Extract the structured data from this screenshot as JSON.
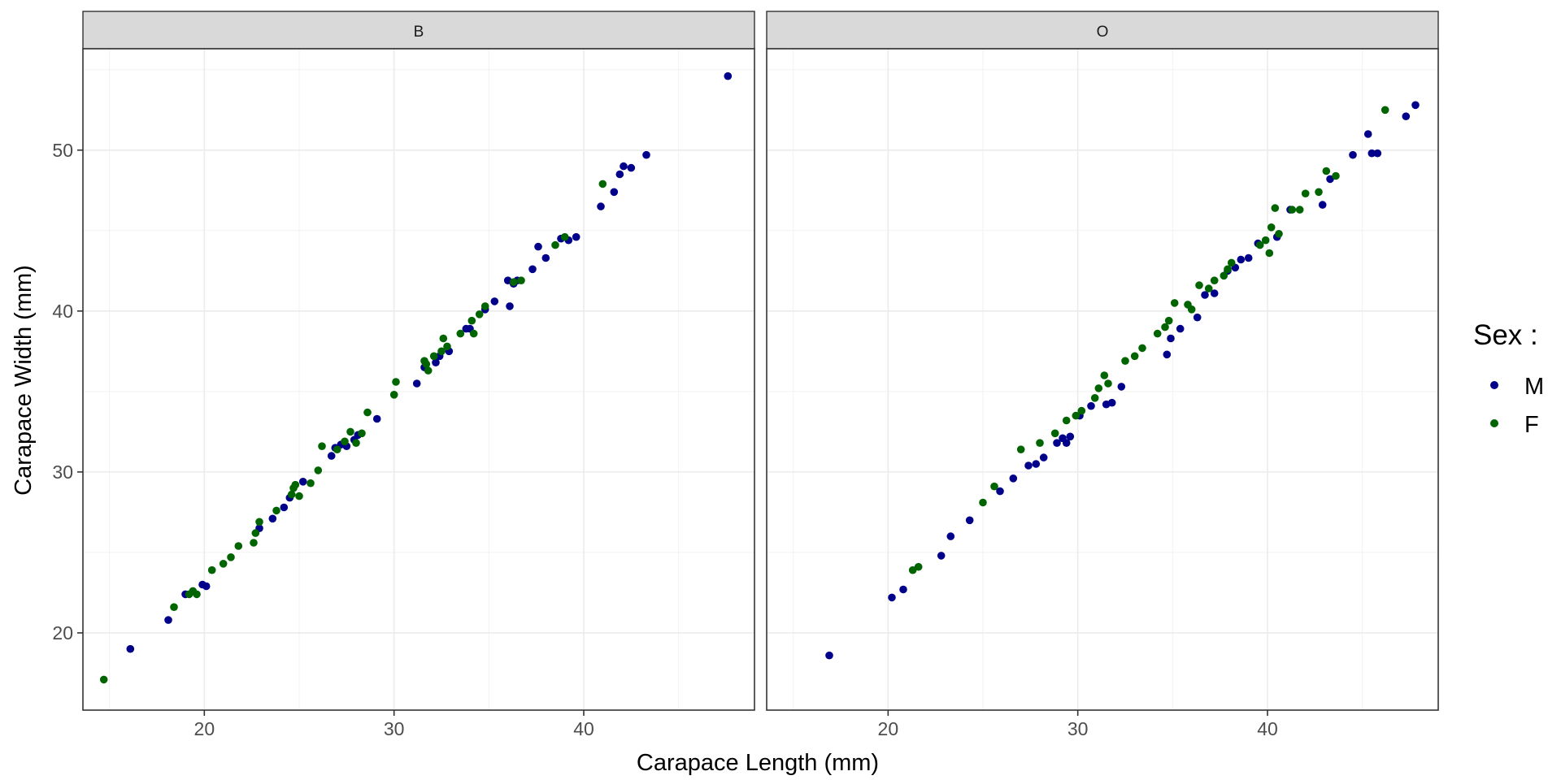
{
  "chart_data": {
    "type": "scatter",
    "xlabel": "Carapace Length (mm)",
    "ylabel": "Carapace Width (mm)",
    "xlim": [
      13.6,
      49.0
    ],
    "ylim": [
      15.2,
      56.3
    ],
    "x_ticks": [
      20,
      30,
      40
    ],
    "y_ticks": [
      20,
      30,
      40,
      50
    ],
    "grid": true,
    "legend": {
      "title": "Sex :",
      "position": "right",
      "entries": [
        {
          "label": "M",
          "color": "#00008B"
        },
        {
          "label": "F",
          "color": "#006400"
        }
      ]
    },
    "panels": [
      {
        "title": "B",
        "series": [
          {
            "name": "M",
            "color": "#00008B",
            "points": [
              [
                16.1,
                19.0
              ],
              [
                18.1,
                20.8
              ],
              [
                19.0,
                22.4
              ],
              [
                19.9,
                23.0
              ],
              [
                20.1,
                22.9
              ],
              [
                22.9,
                26.5
              ],
              [
                23.6,
                27.1
              ],
              [
                24.2,
                27.8
              ],
              [
                24.5,
                28.4
              ],
              [
                25.2,
                29.4
              ],
              [
                26.7,
                31.0
              ],
              [
                26.9,
                31.5
              ],
              [
                27.2,
                31.7
              ],
              [
                27.5,
                31.6
              ],
              [
                27.9,
                32.0
              ],
              [
                28.1,
                32.3
              ],
              [
                29.1,
                33.3
              ],
              [
                31.2,
                35.5
              ],
              [
                31.6,
                36.5
              ],
              [
                32.2,
                36.8
              ],
              [
                32.4,
                37.2
              ],
              [
                32.9,
                37.5
              ],
              [
                33.8,
                38.9
              ],
              [
                34.0,
                38.9
              ],
              [
                34.8,
                40.1
              ],
              [
                35.3,
                40.6
              ],
              [
                36.0,
                41.9
              ],
              [
                36.1,
                40.3
              ],
              [
                36.3,
                41.7
              ],
              [
                36.5,
                41.9
              ],
              [
                37.3,
                42.6
              ],
              [
                37.6,
                44.0
              ],
              [
                38.0,
                43.3
              ],
              [
                38.8,
                44.5
              ],
              [
                39.2,
                44.4
              ],
              [
                39.6,
                44.6
              ],
              [
                40.9,
                46.5
              ],
              [
                41.6,
                47.4
              ],
              [
                41.9,
                48.5
              ],
              [
                42.1,
                49.0
              ],
              [
                42.5,
                48.9
              ],
              [
                43.3,
                49.7
              ],
              [
                47.6,
                54.6
              ]
            ]
          },
          {
            "name": "F",
            "color": "#006400",
            "points": [
              [
                14.7,
                17.1
              ],
              [
                18.4,
                21.6
              ],
              [
                19.2,
                22.4
              ],
              [
                19.4,
                22.6
              ],
              [
                19.6,
                22.4
              ],
              [
                20.4,
                23.9
              ],
              [
                21.0,
                24.3
              ],
              [
                21.4,
                24.7
              ],
              [
                21.8,
                25.4
              ],
              [
                22.6,
                25.6
              ],
              [
                22.7,
                26.2
              ],
              [
                22.9,
                26.9
              ],
              [
                23.8,
                27.6
              ],
              [
                24.6,
                28.6
              ],
              [
                24.7,
                29.0
              ],
              [
                24.8,
                29.2
              ],
              [
                25.0,
                28.5
              ],
              [
                25.6,
                29.3
              ],
              [
                26.0,
                30.1
              ],
              [
                26.2,
                31.6
              ],
              [
                27.0,
                31.4
              ],
              [
                27.4,
                31.9
              ],
              [
                27.7,
                32.5
              ],
              [
                28.0,
                31.8
              ],
              [
                28.3,
                32.4
              ],
              [
                28.6,
                33.7
              ],
              [
                30.0,
                34.8
              ],
              [
                30.1,
                35.6
              ],
              [
                31.6,
                36.9
              ],
              [
                31.7,
                36.7
              ],
              [
                31.8,
                36.3
              ],
              [
                32.1,
                37.2
              ],
              [
                32.5,
                37.5
              ],
              [
                32.6,
                38.3
              ],
              [
                32.8,
                37.8
              ],
              [
                33.5,
                38.6
              ],
              [
                34.1,
                39.4
              ],
              [
                34.2,
                38.6
              ],
              [
                34.5,
                39.8
              ],
              [
                34.8,
                40.3
              ],
              [
                36.3,
                41.8
              ],
              [
                36.7,
                41.9
              ],
              [
                38.5,
                44.1
              ],
              [
                39.0,
                44.6
              ],
              [
                41.0,
                47.9
              ]
            ]
          }
        ]
      },
      {
        "title": "O",
        "series": [
          {
            "name": "M",
            "color": "#00008B",
            "points": [
              [
                16.9,
                18.6
              ],
              [
                20.2,
                22.2
              ],
              [
                20.8,
                22.7
              ],
              [
                22.8,
                24.8
              ],
              [
                23.3,
                26.0
              ],
              [
                24.3,
                27.0
              ],
              [
                25.9,
                28.8
              ],
              [
                26.6,
                29.6
              ],
              [
                27.4,
                30.4
              ],
              [
                27.8,
                30.5
              ],
              [
                28.2,
                30.9
              ],
              [
                28.9,
                31.8
              ],
              [
                29.2,
                32.1
              ],
              [
                29.4,
                31.8
              ],
              [
                29.6,
                32.2
              ],
              [
                30.1,
                33.5
              ],
              [
                30.7,
                34.1
              ],
              [
                31.5,
                34.2
              ],
              [
                31.8,
                34.3
              ],
              [
                32.3,
                35.3
              ],
              [
                34.7,
                37.3
              ],
              [
                34.9,
                38.3
              ],
              [
                35.4,
                38.9
              ],
              [
                36.3,
                39.6
              ],
              [
                36.7,
                41.0
              ],
              [
                37.2,
                41.1
              ],
              [
                37.9,
                42.5
              ],
              [
                38.3,
                42.7
              ],
              [
                38.6,
                43.2
              ],
              [
                39.0,
                43.3
              ],
              [
                39.5,
                44.2
              ],
              [
                40.5,
                44.6
              ],
              [
                41.2,
                46.3
              ],
              [
                42.9,
                46.6
              ],
              [
                43.3,
                48.2
              ],
              [
                44.5,
                49.7
              ],
              [
                45.3,
                51.0
              ],
              [
                45.5,
                49.8
              ],
              [
                45.8,
                49.8
              ],
              [
                47.3,
                52.1
              ],
              [
                47.8,
                52.8
              ]
            ]
          },
          {
            "name": "F",
            "color": "#006400",
            "points": [
              [
                21.3,
                23.9
              ],
              [
                21.6,
                24.1
              ],
              [
                25.0,
                28.1
              ],
              [
                25.6,
                29.1
              ],
              [
                27.0,
                31.4
              ],
              [
                28.0,
                31.8
              ],
              [
                28.8,
                32.4
              ],
              [
                29.4,
                33.2
              ],
              [
                29.9,
                33.5
              ],
              [
                30.2,
                33.8
              ],
              [
                30.9,
                34.6
              ],
              [
                31.1,
                35.2
              ],
              [
                31.4,
                36.0
              ],
              [
                31.6,
                35.5
              ],
              [
                32.5,
                36.9
              ],
              [
                33.0,
                37.2
              ],
              [
                33.4,
                37.7
              ],
              [
                34.2,
                38.6
              ],
              [
                34.6,
                39.0
              ],
              [
                34.8,
                39.4
              ],
              [
                35.1,
                40.5
              ],
              [
                35.8,
                40.4
              ],
              [
                36.0,
                40.1
              ],
              [
                36.4,
                41.6
              ],
              [
                36.9,
                41.4
              ],
              [
                37.2,
                41.9
              ],
              [
                37.7,
                42.2
              ],
              [
                37.9,
                42.6
              ],
              [
                38.1,
                43.0
              ],
              [
                39.6,
                44.1
              ],
              [
                39.9,
                44.4
              ],
              [
                40.1,
                43.6
              ],
              [
                40.2,
                45.2
              ],
              [
                40.4,
                46.4
              ],
              [
                40.6,
                44.8
              ],
              [
                41.3,
                46.3
              ],
              [
                41.7,
                46.3
              ],
              [
                42.0,
                47.3
              ],
              [
                42.7,
                47.4
              ],
              [
                43.1,
                48.7
              ],
              [
                43.6,
                48.4
              ],
              [
                46.2,
                52.5
              ]
            ]
          }
        ]
      }
    ]
  }
}
